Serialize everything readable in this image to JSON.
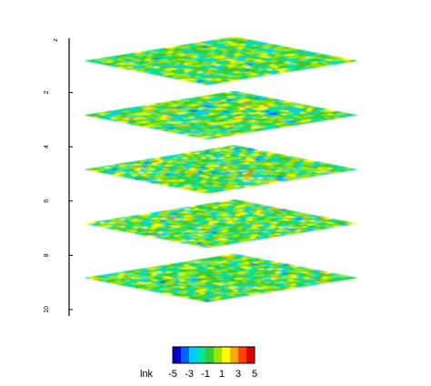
{
  "chart_data": {
    "type": "heatmap",
    "title": "",
    "z_axis": {
      "label": "z",
      "ticks": [
        2,
        4,
        6,
        8,
        10
      ],
      "range": [
        0,
        10
      ]
    },
    "slices": [
      {
        "z": 0.5
      },
      {
        "z": 2.5
      },
      {
        "z": 4.5
      },
      {
        "z": 6.5
      },
      {
        "z": 8.5
      }
    ],
    "colorbar": {
      "label": "lnk",
      "range": [
        -5,
        5
      ],
      "ticks": [
        -5,
        -3,
        -1,
        1,
        3,
        5
      ],
      "colors": [
        "#0000cc",
        "#0066ff",
        "#00ccff",
        "#00e6a0",
        "#33cc33",
        "#99e600",
        "#ffff00",
        "#ffaa00",
        "#ff4400",
        "#dd0000"
      ]
    }
  }
}
